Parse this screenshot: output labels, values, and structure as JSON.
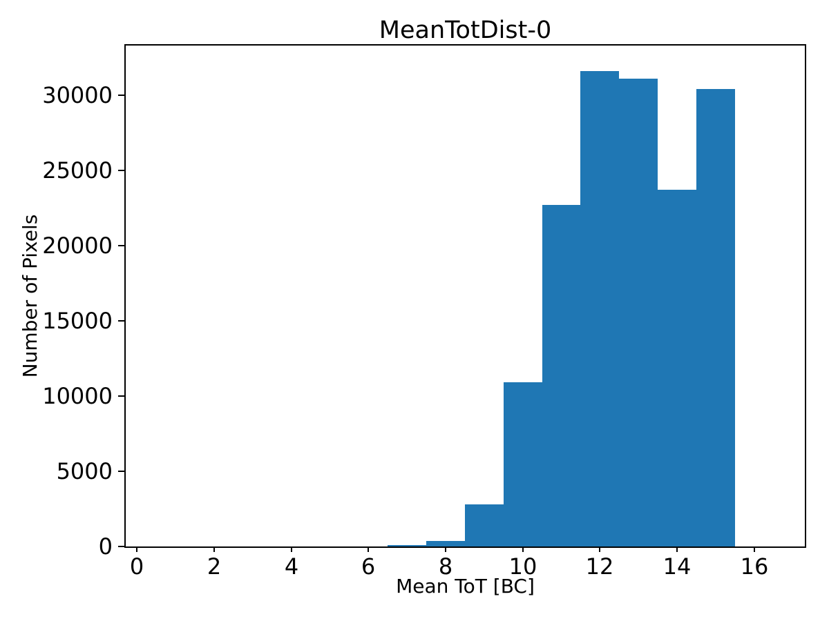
{
  "figure": {
    "background": "#ffffff",
    "frame_color": "#000000",
    "text_color": "#000000"
  },
  "chart_data": {
    "type": "bar",
    "subtype": "histogram",
    "title": "MeanTotDist-0",
    "xlabel": "Mean ToT [BC]",
    "ylabel": "Number of Pixels",
    "bar_color": "#1f77b4",
    "bin_width": 1,
    "bin_centers": [
      1,
      2,
      3,
      4,
      5,
      6,
      7,
      8,
      9,
      10,
      11,
      12,
      13,
      14,
      15,
      16
    ],
    "counts": [
      0,
      0,
      0,
      0,
      0,
      0,
      100,
      350,
      2800,
      10900,
      22700,
      31600,
      31100,
      23700,
      30400,
      0
    ],
    "xlim": [
      -0.29,
      17.31
    ],
    "ylim": [
      0,
      33290
    ],
    "xticks": [
      0,
      2,
      4,
      6,
      8,
      10,
      12,
      14,
      16
    ],
    "yticks": [
      0,
      5000,
      10000,
      15000,
      20000,
      25000,
      30000
    ],
    "grid": false,
    "legend": null
  }
}
